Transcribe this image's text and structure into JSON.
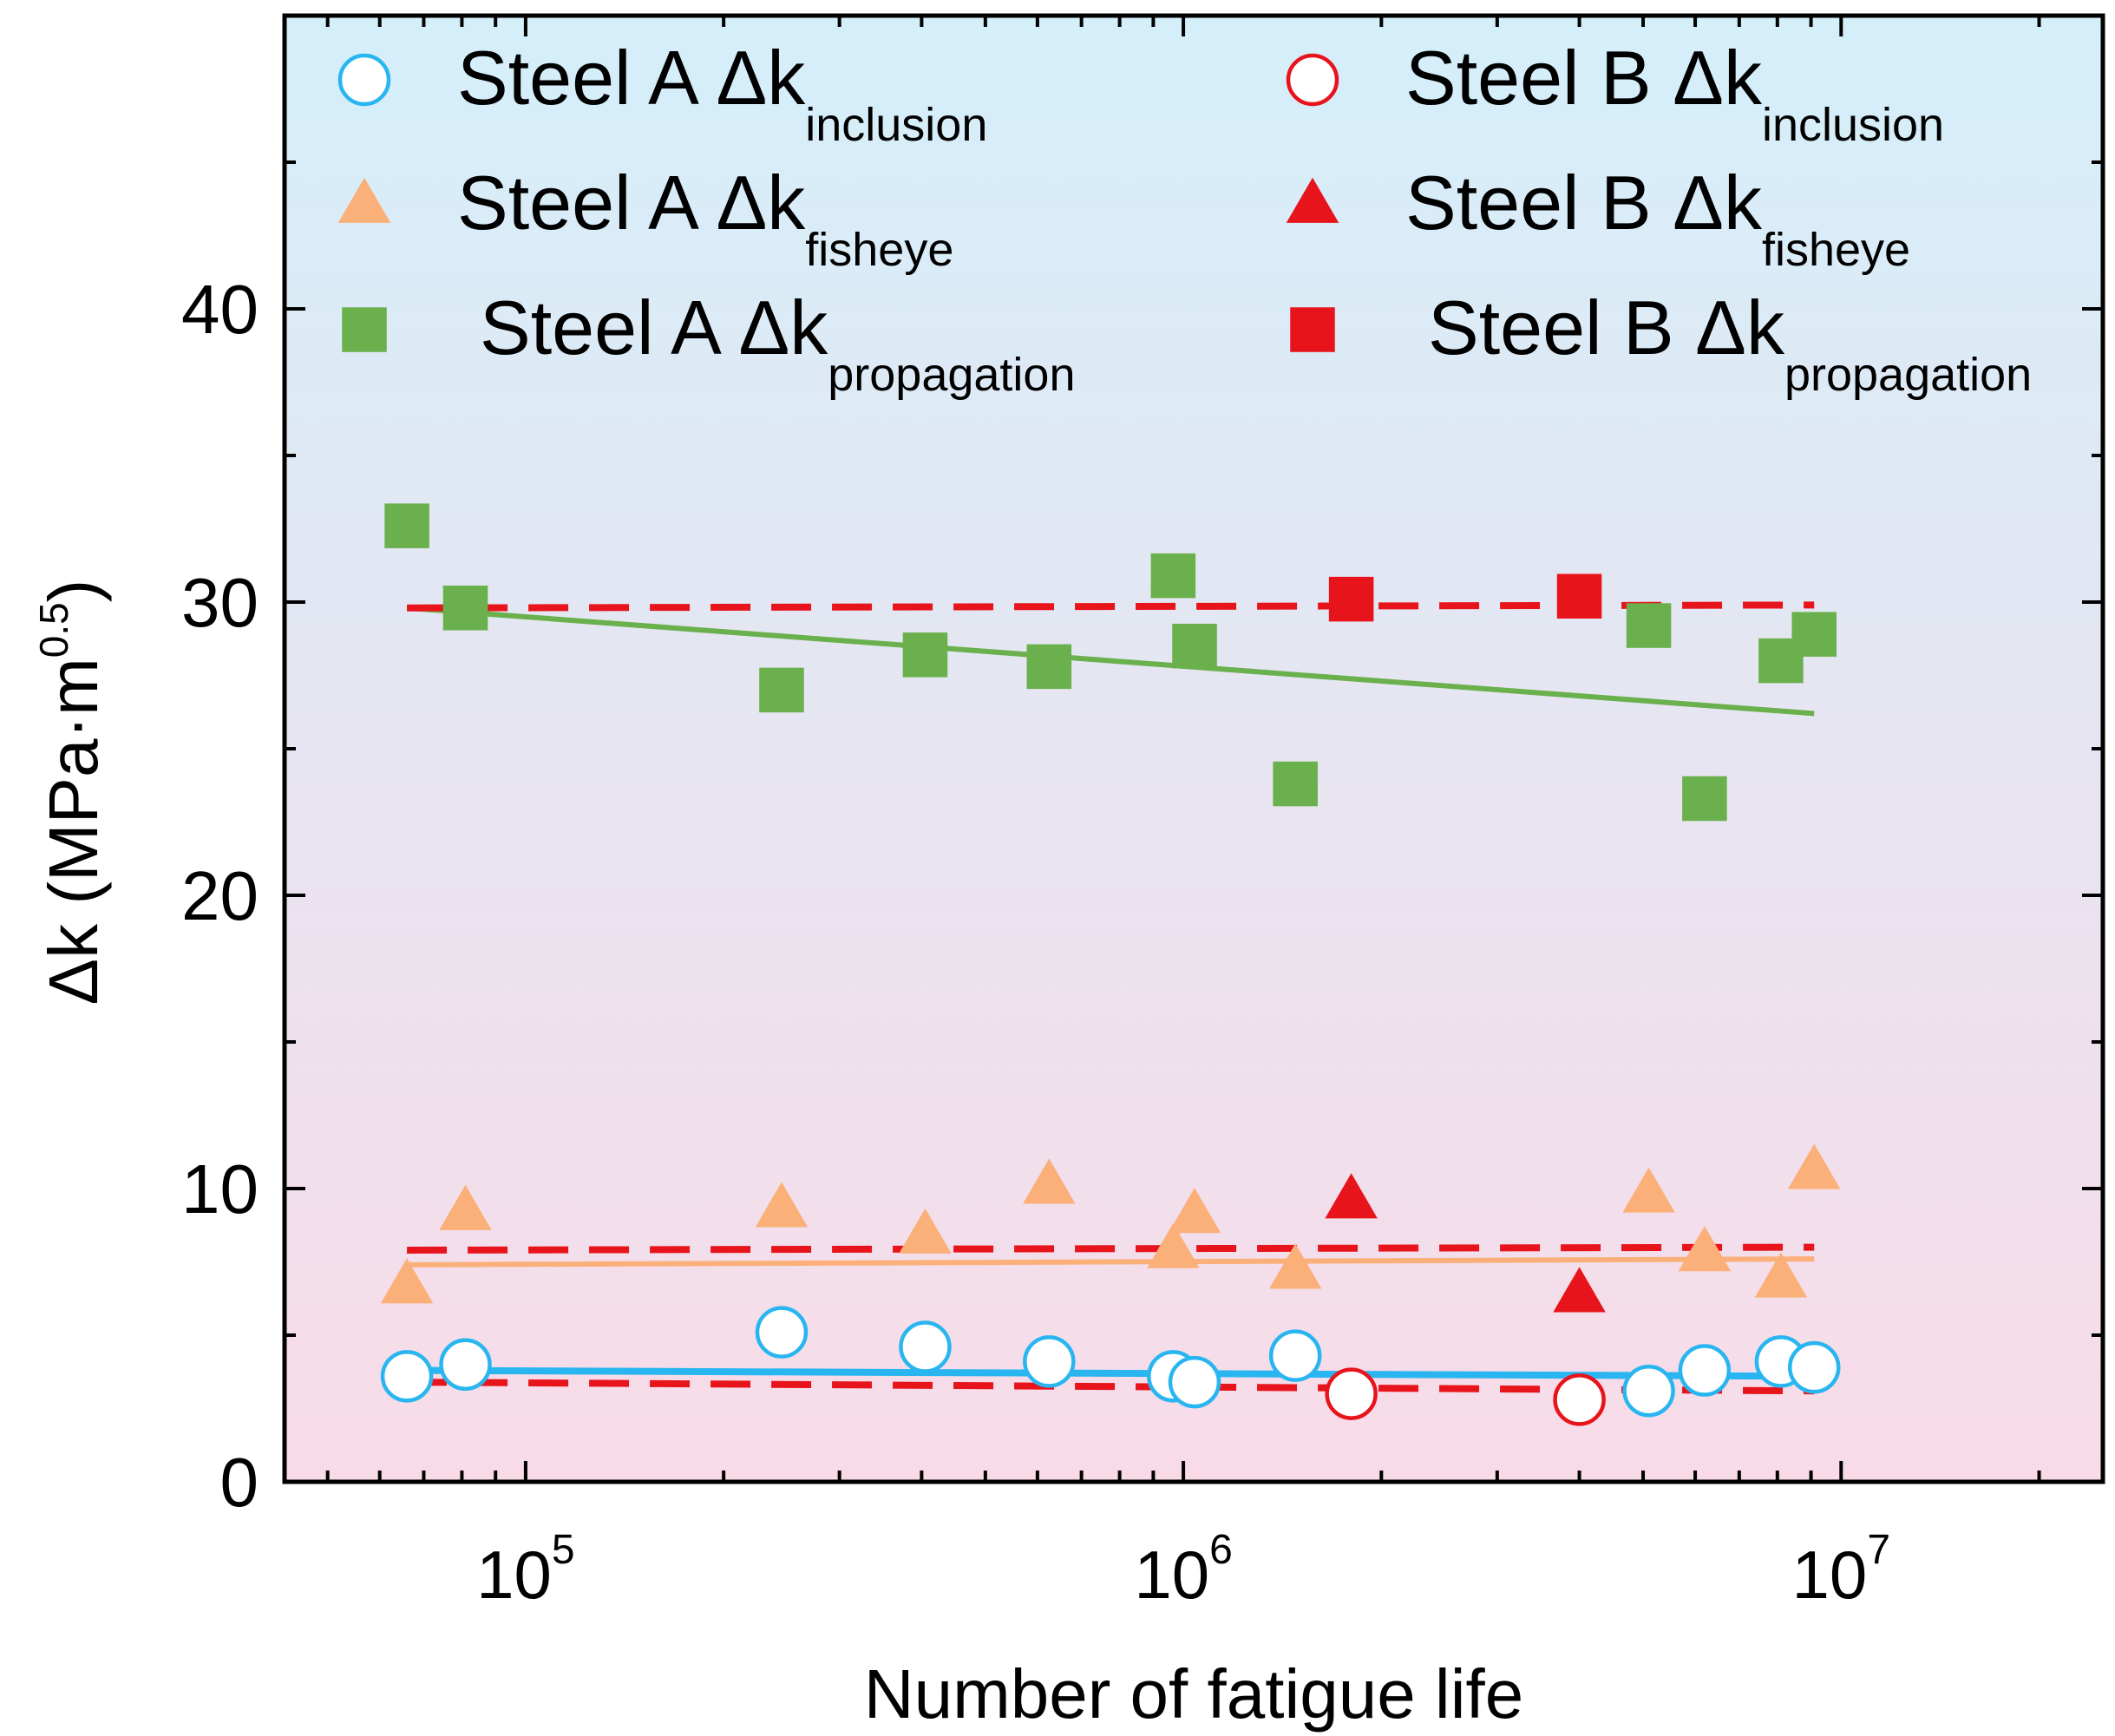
{
  "chart_data": {
    "type": "scatter",
    "x_scale": "log",
    "xlim": [
      43000,
      25000000
    ],
    "ylim": [
      0,
      50
    ],
    "xlabel": "Number of fatigue life",
    "ylabel": {
      "main": "Δk (MPa·m",
      "sup": "0.5",
      "close": ")"
    },
    "y_ticks": [
      0,
      10,
      20,
      30,
      40
    ],
    "y_tick_labels": [
      "0",
      "10",
      "20",
      "30",
      "40"
    ],
    "x_ticks": [
      100000,
      1000000,
      10000000
    ],
    "x_tick_labels": [
      {
        "base": "10",
        "exp": "5"
      },
      {
        "base": "10",
        "exp": "6"
      },
      {
        "base": "10",
        "exp": "7"
      }
    ],
    "grid": false,
    "background": {
      "top": "#d4effa",
      "bottom": "#f9dbe8"
    },
    "series": [
      {
        "name": "Steel A Δk inclusion",
        "label_main": "Steel A Δk",
        "label_sub": "inclusion",
        "marker": "circle-open",
        "color": "#29b6f0",
        "x": [
          66000,
          81000,
          245000,
          405000,
          625000,
          965000,
          1040000,
          1480000,
          5100000,
          6200000,
          8100000,
          9100000
        ],
        "y": [
          3.6,
          4.0,
          5.1,
          4.6,
          4.1,
          3.6,
          3.4,
          4.3,
          3.1,
          3.8,
          4.1,
          3.9
        ]
      },
      {
        "name": "Steel A Δk fisheye",
        "label_main": "Steel A Δk",
        "label_sub": "fisheye",
        "marker": "triangle",
        "color": "#fbb07a",
        "x": [
          66000,
          81000,
          245000,
          405000,
          625000,
          965000,
          1040000,
          1480000,
          5100000,
          6200000,
          8100000,
          9100000
        ],
        "y": [
          6.7,
          9.2,
          9.3,
          8.4,
          10.1,
          7.9,
          9.1,
          7.2,
          9.8,
          7.8,
          6.9,
          10.6
        ]
      },
      {
        "name": "Steel A Δk propagation",
        "label_main": "Steel A Δk",
        "label_sub": "propagation",
        "marker": "square",
        "color": "#6ab04c",
        "x": [
          66000,
          81000,
          245000,
          405000,
          625000,
          965000,
          1040000,
          1480000,
          5100000,
          6200000,
          8100000,
          9100000
        ],
        "y": [
          32.6,
          29.8,
          27.0,
          28.2,
          27.8,
          30.9,
          28.5,
          23.8,
          29.2,
          23.3,
          28.0,
          28.9
        ]
      },
      {
        "name": "Steel B Δk inclusion",
        "label_main": "Steel B Δk",
        "label_sub": "inclusion",
        "marker": "circle-open",
        "color": "#e8141c",
        "x": [
          1800000,
          4000000
        ],
        "y": [
          3.0,
          2.8
        ]
      },
      {
        "name": "Steel B Δk fisheye",
        "label_main": "Steel B Δk",
        "label_sub": "fisheye",
        "marker": "triangle",
        "color": "#e8141c",
        "x": [
          1800000,
          4000000
        ],
        "y": [
          9.6,
          6.4
        ]
      },
      {
        "name": "Steel B Δk propagation",
        "label_main": "Steel B Δk",
        "label_sub": "propagation",
        "marker": "square",
        "color": "#e8141c",
        "x": [
          1800000,
          4000000
        ],
        "y": [
          30.1,
          30.2
        ]
      }
    ],
    "fit_lines": [
      {
        "name": "Steel A inclusion fit",
        "style": "solid",
        "color": "#29b6f0",
        "x": [
          66000,
          9100000
        ],
        "y": [
          3.8,
          3.6
        ]
      },
      {
        "name": "Steel A fisheye fit",
        "style": "solid",
        "color": "#fbb07a",
        "x": [
          66000,
          9100000
        ],
        "y": [
          7.4,
          7.6
        ]
      },
      {
        "name": "Steel A propagation fit",
        "style": "solid",
        "color": "#6ab04c",
        "x": [
          66000,
          9100000
        ],
        "y": [
          29.8,
          26.2
        ]
      },
      {
        "name": "Steel B inclusion fit",
        "style": "dashed",
        "color": "#e8141c",
        "x": [
          66000,
          9100000
        ],
        "y": [
          3.4,
          3.1
        ]
      },
      {
        "name": "Steel B fisheye fit",
        "style": "dashed",
        "color": "#e8141c",
        "x": [
          66000,
          9100000
        ],
        "y": [
          7.9,
          8.0
        ]
      },
      {
        "name": "Steel B propagation fit",
        "style": "dashed",
        "color": "#e8141c",
        "x": [
          66000,
          9100000
        ],
        "y": [
          29.8,
          29.9
        ]
      }
    ],
    "legend_position": "top"
  }
}
